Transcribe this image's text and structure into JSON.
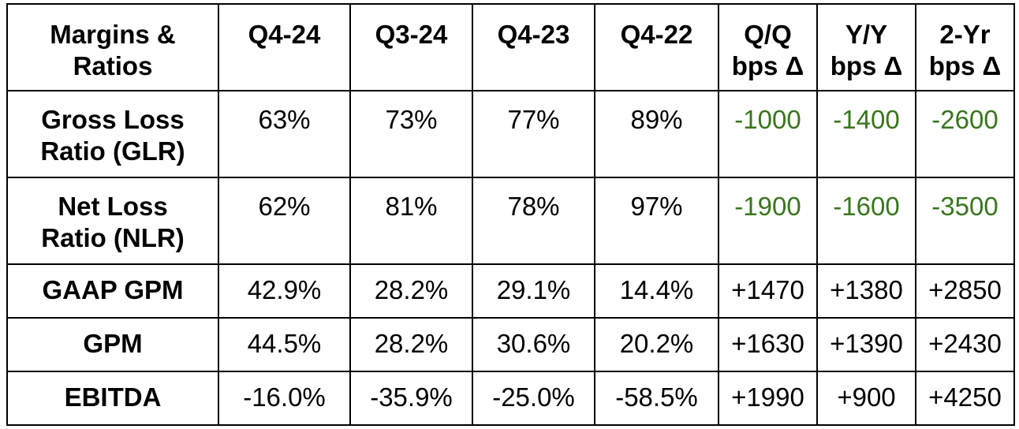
{
  "header": {
    "label_line1": "Margins &",
    "label_line2": "Ratios",
    "periods": [
      "Q4-24",
      "Q3-24",
      "Q4-23",
      "Q4-22"
    ],
    "deltas": [
      {
        "line1": "Q/Q",
        "line2": "bps Δ"
      },
      {
        "line1": "Y/Y",
        "line2": "bps Δ"
      },
      {
        "line1": "2-Yr",
        "line2": "bps Δ"
      }
    ]
  },
  "rows": [
    {
      "label_line1": "Gross Loss",
      "label_line2": "Ratio (GLR)",
      "values": [
        "63%",
        "73%",
        "77%",
        "89%"
      ],
      "deltas": [
        "-1000",
        "-1400",
        "-2600"
      ]
    },
    {
      "label_line1": "Net Loss",
      "label_line2": "Ratio (NLR)",
      "values": [
        "62%",
        "81%",
        "78%",
        "97%"
      ],
      "deltas": [
        "-1900",
        "-1600",
        "-3500"
      ]
    },
    {
      "label_line1": "GAAP GPM",
      "values": [
        "42.9%",
        "28.2%",
        "29.1%",
        "14.4%"
      ],
      "deltas": [
        "+1470",
        "+1380",
        "+2850"
      ]
    },
    {
      "label_line1": "GPM",
      "values": [
        "44.5%",
        "28.2%",
        "30.6%",
        "20.2%"
      ],
      "deltas": [
        "+1630",
        "+1390",
        "+2430"
      ]
    },
    {
      "label_line1": "EBITDA",
      "values": [
        "-16.0%",
        "-35.9%",
        "-25.0%",
        "-58.5%"
      ],
      "deltas": [
        "+1990",
        "+900",
        "+4250"
      ]
    }
  ],
  "colors": {
    "favorable_delta": "#38761d",
    "text": "#000000",
    "border": "#000000",
    "background": "#ffffff"
  }
}
